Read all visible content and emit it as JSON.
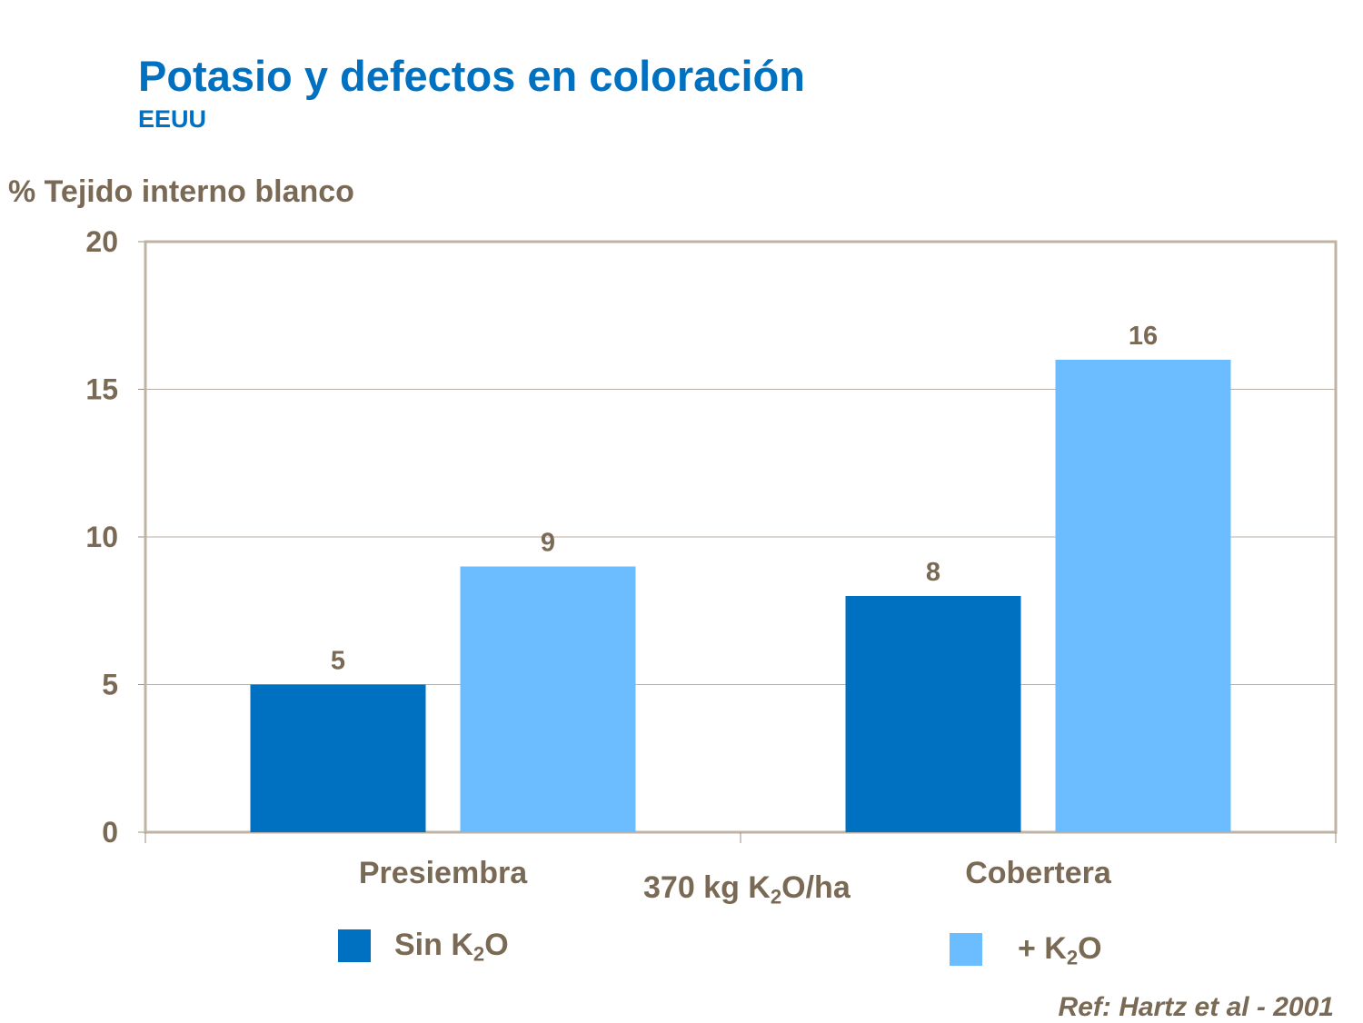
{
  "chart_data": {
    "type": "bar",
    "title": "Potasio y defectos en coloración",
    "subtitle": "EEUU",
    "ylabel": "% Tejido interno blanco",
    "xlabel": "370 kg K₂O/ha",
    "categories": [
      "Presiembra",
      "Cobertera"
    ],
    "series": [
      {
        "name": "Sin K₂O",
        "values": [
          5,
          8
        ],
        "color": "#0070C0"
      },
      {
        "name": "+ K₂O",
        "values": [
          9,
          16
        ],
        "color": "#6BBDFF"
      }
    ],
    "ylim": [
      0,
      20
    ],
    "yticks": [
      0,
      5,
      10,
      15,
      20
    ],
    "grid": true,
    "legend": "bottom",
    "annotation": "Ref: Hartz et al - 2001"
  }
}
